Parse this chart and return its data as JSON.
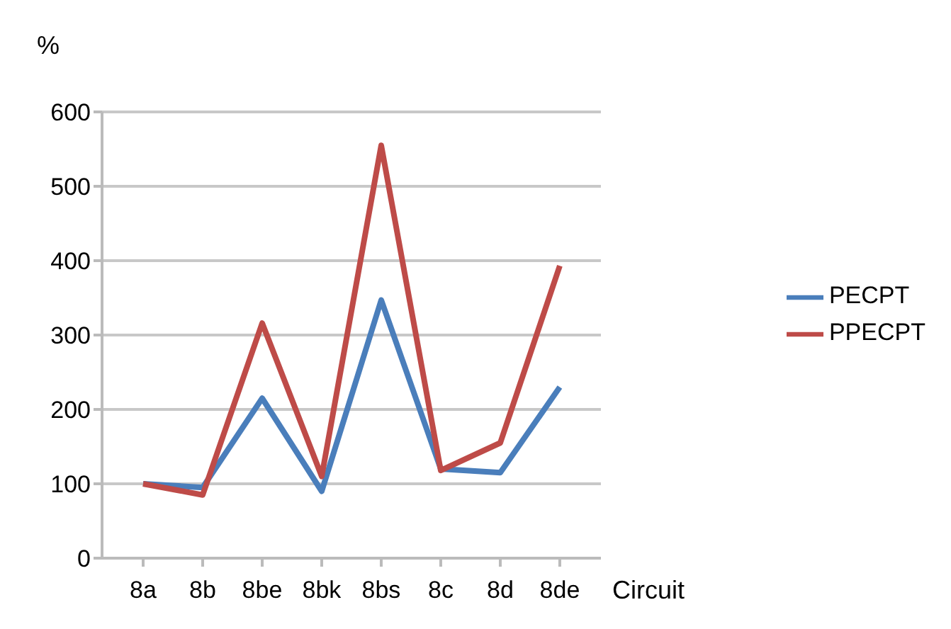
{
  "chart_data": {
    "type": "line",
    "ylabel": "%",
    "xlabel": "Circuit",
    "categories": [
      "8a",
      "8b",
      "8be",
      "8bk",
      "8bs",
      "8c",
      "8d",
      "8de"
    ],
    "series": [
      {
        "name": "PECPT",
        "color": "#4a7ebb",
        "values": [
          100,
          95,
          215,
          90,
          347,
          120,
          115,
          230
        ]
      },
      {
        "name": "PPECPT",
        "color": "#be4b48",
        "values": [
          100,
          85,
          316,
          110,
          555,
          118,
          155,
          393
        ]
      }
    ],
    "ylim": [
      0,
      600
    ],
    "yticks": [
      0,
      100,
      200,
      300,
      400,
      500,
      600
    ],
    "grid": "y",
    "legend": "right"
  }
}
